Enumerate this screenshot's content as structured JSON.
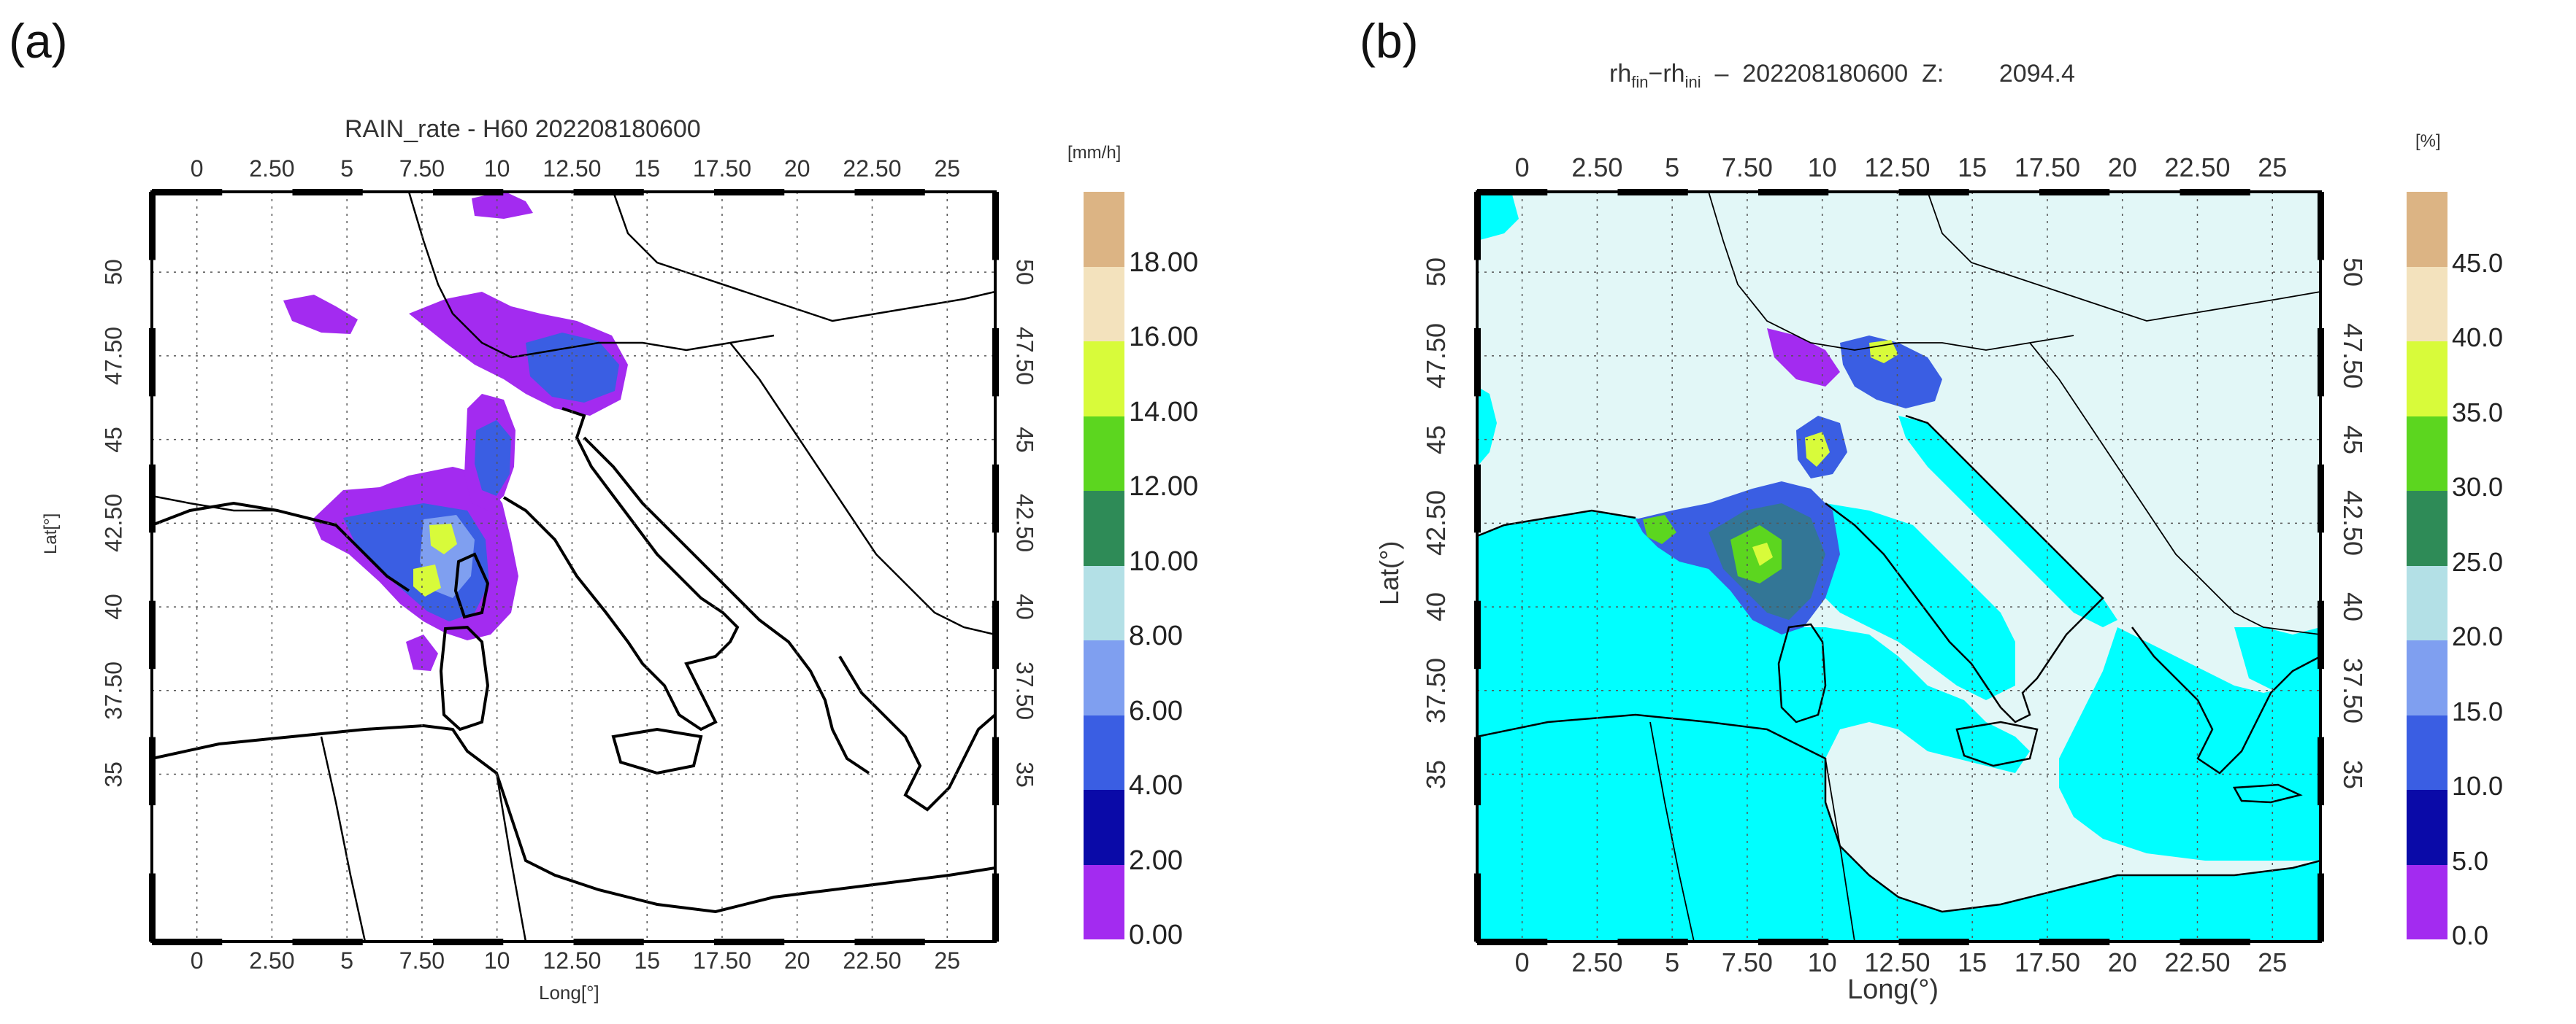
{
  "panels": [
    {
      "letter": "(a)",
      "title": "RAIN_rate  -  H60 202208180600",
      "xlabel": "Long[°]",
      "ylabel": "Lat[°]",
      "unit": "[mm/h]",
      "lon_ticks": [
        "0",
        "2.50",
        "5",
        "7.50",
        "10",
        "12.50",
        "15",
        "17.50",
        "20",
        "22.50",
        "25"
      ],
      "lat_ticks": [
        "35",
        "37.50",
        "40",
        "42.50",
        "45",
        "47.50",
        "50"
      ],
      "colorbar_ticks": [
        "0.00",
        "2.00",
        "4.00",
        "6.00",
        "8.00",
        "10.00",
        "12.00",
        "14.00",
        "16.00",
        "18.00"
      ]
    },
    {
      "letter": "(b)",
      "title_main": "rh",
      "title_sub1": "fin",
      "title_mid": "−rh",
      "title_sub2": "ini",
      "title_rest": "  –  202208180600  Z:        2094.4",
      "xlabel": "Long(°)",
      "ylabel": "Lat(°)",
      "unit": "[%]",
      "lon_ticks": [
        "0",
        "2.50",
        "5",
        "7.50",
        "10",
        "12.50",
        "15",
        "17.50",
        "20",
        "22.50",
        "25"
      ],
      "lat_ticks": [
        "35",
        "37.50",
        "40",
        "42.50",
        "45",
        "47.50",
        "50"
      ],
      "colorbar_ticks": [
        "0.0",
        "5.0",
        "10.0",
        "15.0",
        "20.0",
        "25.0",
        "30.0",
        "35.0",
        "40.0",
        "45.0"
      ]
    }
  ],
  "colors": {
    "scale": [
      "#a32bf0",
      "#0a0aa8",
      "#3a5ee3",
      "#7f9ff0",
      "#b3e0e6",
      "#2e8b57",
      "#5cd61f",
      "#d8fb3a",
      "#f3e2bd",
      "#dcb484"
    ],
    "sea_b": "#00ffff",
    "land_b": "#e2f7f7",
    "coast": "#000000"
  }
}
